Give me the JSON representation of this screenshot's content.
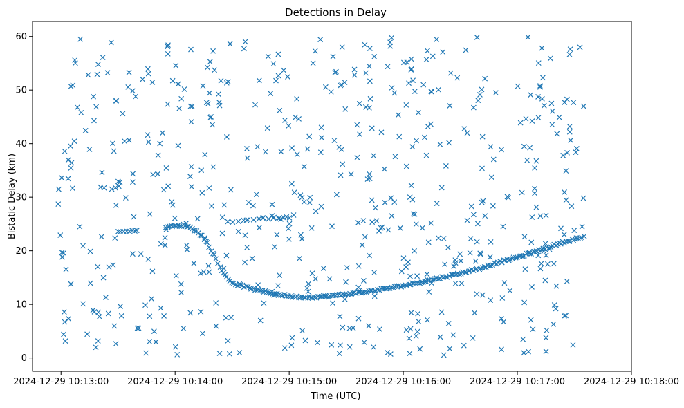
{
  "chart_data": {
    "type": "scatter",
    "title": "Detections in Delay",
    "xlabel": "Time (UTC)",
    "ylabel": "Bistatic Delay (km)",
    "marker": "x",
    "color": "#1f77b4",
    "xlim": [
      "2024-12-29 10:12:45",
      "2024-12-29 10:18:00"
    ],
    "ylim": [
      -2.5,
      62.8
    ],
    "x_ticks": [
      "2024-12-29 10:13:00",
      "2024-12-29 10:14:00",
      "2024-12-29 10:15:00",
      "2024-12-29 10:16:00",
      "2024-12-29 10:17:00",
      "2024-12-29 10:18:00"
    ],
    "y_ticks": [
      0,
      10,
      20,
      30,
      40,
      50,
      60
    ],
    "grid": false,
    "track": {
      "name": "",
      "points": [
        [
          "10:13:55",
          24.5
        ],
        [
          "10:14:00",
          24.6
        ],
        [
          "10:14:05",
          24.8
        ],
        [
          "10:14:10",
          24.0
        ],
        [
          "10:14:15",
          22.5
        ],
        [
          "10:14:20",
          19.5
        ],
        [
          "10:14:25",
          16.0
        ],
        [
          "10:14:30",
          14.0
        ],
        [
          "10:14:35",
          13.5
        ],
        [
          "10:14:45",
          12.5
        ],
        [
          "10:15:00",
          11.5
        ],
        [
          "10:15:10",
          11.3
        ],
        [
          "10:15:20",
          11.5
        ],
        [
          "10:15:30",
          11.9
        ],
        [
          "10:15:40",
          12.3
        ],
        [
          "10:15:50",
          12.9
        ],
        [
          "10:16:00",
          13.5
        ],
        [
          "10:16:10",
          14.2
        ],
        [
          "10:16:20",
          15.0
        ],
        [
          "10:16:30",
          15.8
        ],
        [
          "10:16:40",
          16.7
        ],
        [
          "10:16:50",
          17.8
        ],
        [
          "10:17:00",
          18.8
        ],
        [
          "10:17:10",
          19.9
        ],
        [
          "10:17:20",
          21.1
        ],
        [
          "10:17:28",
          22.0
        ],
        [
          "10:17:35",
          22.6
        ]
      ],
      "num_points": 240
    },
    "track2": {
      "points": [
        [
          "10:13:30",
          23.5
        ],
        [
          "10:13:40",
          23.8
        ]
      ],
      "num_points": 8
    },
    "track3": {
      "points": [
        [
          "10:14:25",
          25.3
        ],
        [
          "10:14:35",
          25.6
        ],
        [
          "10:14:45",
          26.0
        ],
        [
          "10:15:00",
          26.3
        ]
      ],
      "num_points": 14
    },
    "clutter": {
      "time_range": [
        "10:12:58",
        "10:17:36"
      ],
      "delay_range": [
        0.5,
        60.0
      ],
      "num_points": 600
    }
  }
}
